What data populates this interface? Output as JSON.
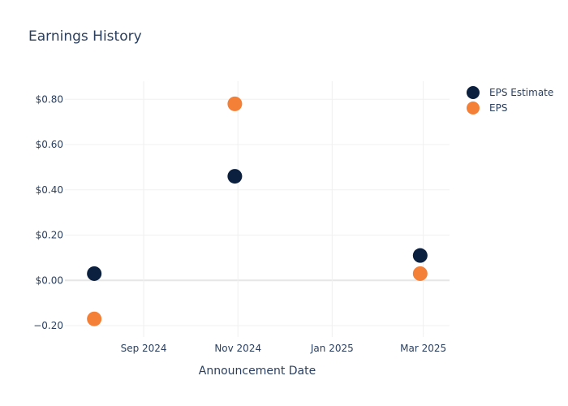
{
  "chart_data": {
    "type": "scatter",
    "title": "Earnings History",
    "xlabel": "Announcement Date",
    "ylabel": "",
    "x_type": "date",
    "xlim": [
      "2024-07-12",
      "2025-03-18"
    ],
    "ylim": [
      -0.25,
      0.88
    ],
    "x_ticks": [
      {
        "value": "2024-09-01",
        "label": "Sep 2024"
      },
      {
        "value": "2024-11-01",
        "label": "Nov 2024"
      },
      {
        "value": "2025-01-01",
        "label": "Jan 2025"
      },
      {
        "value": "2025-03-01",
        "label": "Mar 2025"
      }
    ],
    "y_ticks": [
      {
        "value": -0.2,
        "label": "−0.20"
      },
      {
        "value": 0.0,
        "label": "$0.00"
      },
      {
        "value": 0.2,
        "label": "$0.20"
      },
      {
        "value": 0.4,
        "label": "$0.40"
      },
      {
        "value": 0.6,
        "label": "$0.60"
      },
      {
        "value": 0.8,
        "label": "$0.80"
      }
    ],
    "grid": true,
    "legend_position": "top-right",
    "series": [
      {
        "name": "EPS Estimate",
        "color": "#0b1f3f",
        "points": [
          {
            "x": "2024-07-31",
            "y": 0.03
          },
          {
            "x": "2024-10-30",
            "y": 0.46
          },
          {
            "x": "2025-02-27",
            "y": 0.11
          }
        ]
      },
      {
        "name": "EPS",
        "color": "#f47f36",
        "points": [
          {
            "x": "2024-07-31",
            "y": -0.17
          },
          {
            "x": "2024-10-30",
            "y": 0.78
          },
          {
            "x": "2025-02-27",
            "y": 0.03
          }
        ]
      }
    ]
  }
}
